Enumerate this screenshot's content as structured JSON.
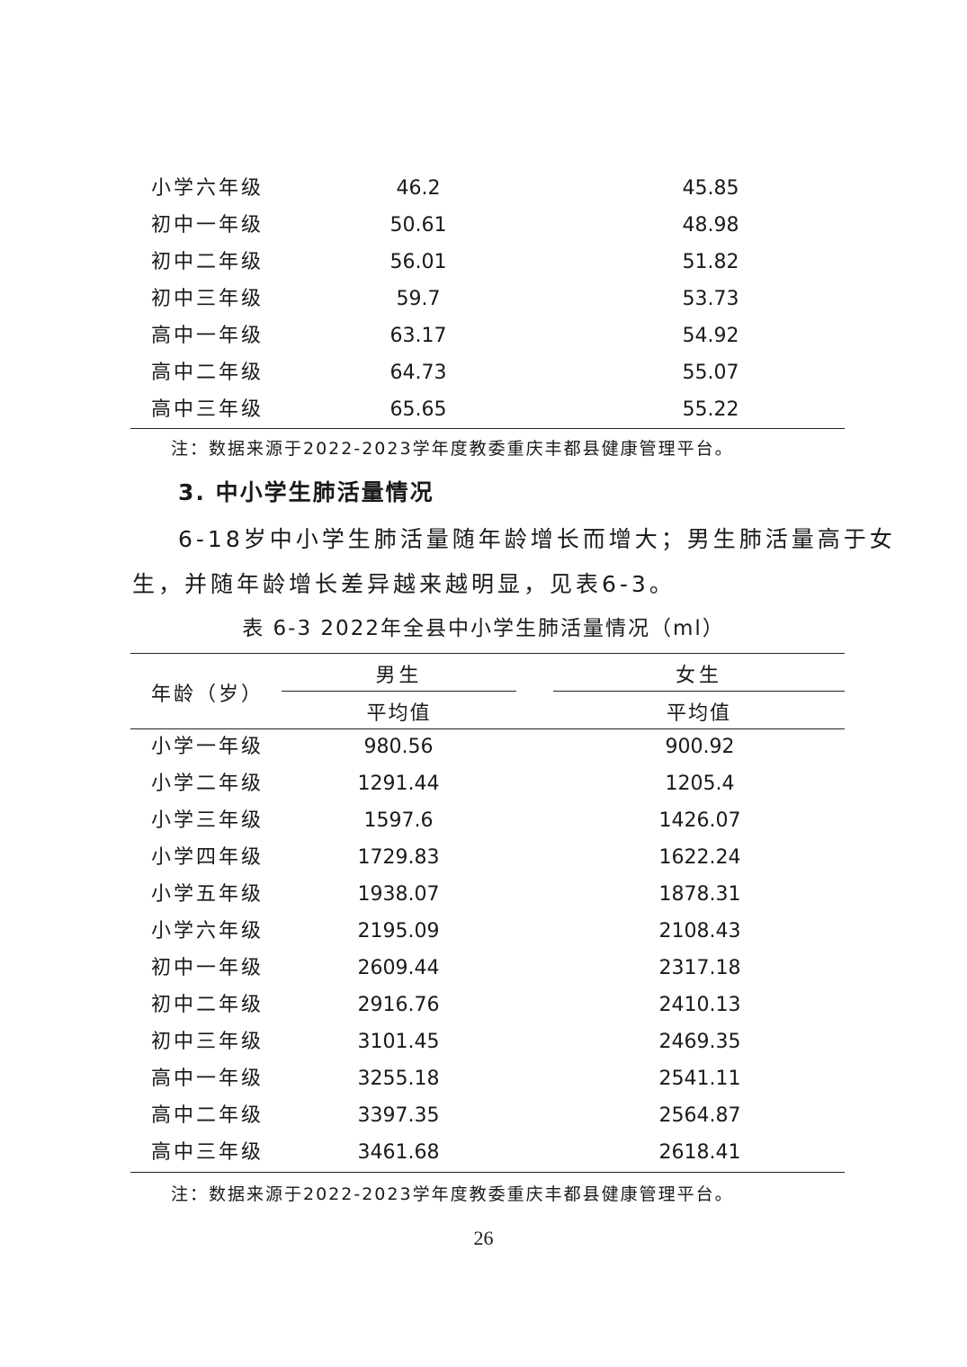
{
  "table_prev": {
    "rows": [
      {
        "grade": "小学六年级",
        "male": "46.2",
        "female": "45.85"
      },
      {
        "grade": "初中一年级",
        "male": "50.61",
        "female": "48.98"
      },
      {
        "grade": "初中二年级",
        "male": "56.01",
        "female": "51.82"
      },
      {
        "grade": "初中三年级",
        "male": "59.7",
        "female": "53.73"
      },
      {
        "grade": "高中一年级",
        "male": "63.17",
        "female": "54.92"
      },
      {
        "grade": "高中二年级",
        "male": "64.73",
        "female": "55.07"
      },
      {
        "grade": "高中三年级",
        "male": "65.65",
        "female": "55.22"
      }
    ],
    "note": "注：数据来源于2022-2023学年度教委重庆丰都县健康管理平台。"
  },
  "section": {
    "heading": "3. 中小学生肺活量情况",
    "para_line1": "6-18岁中小学生肺活量随年龄增长而增大；男生肺活量高于女",
    "para_line2": "生，并随年龄增长差异越来越明显，见表6-3。"
  },
  "table_6_3": {
    "caption": "表 6-3  2022年全县中小学生肺活量情况（ml）",
    "header_age": "年龄（岁）",
    "header_male": "男生",
    "header_female": "女生",
    "header_avg_male": "平均值",
    "header_avg_female": "平均值",
    "rows": [
      {
        "grade": "小学一年级",
        "male": "980.56",
        "female": "900.92"
      },
      {
        "grade": "小学二年级",
        "male": "1291.44",
        "female": "1205.4"
      },
      {
        "grade": "小学三年级",
        "male": "1597.6",
        "female": "1426.07"
      },
      {
        "grade": "小学四年级",
        "male": "1729.83",
        "female": "1622.24"
      },
      {
        "grade": "小学五年级",
        "male": "1938.07",
        "female": "1878.31"
      },
      {
        "grade": "小学六年级",
        "male": "2195.09",
        "female": "2108.43"
      },
      {
        "grade": "初中一年级",
        "male": "2609.44",
        "female": "2317.18"
      },
      {
        "grade": "初中二年级",
        "male": "2916.76",
        "female": "2410.13"
      },
      {
        "grade": "初中三年级",
        "male": "3101.45",
        "female": "2469.35"
      },
      {
        "grade": "高中一年级",
        "male": "3255.18",
        "female": "2541.11"
      },
      {
        "grade": "高中二年级",
        "male": "3397.35",
        "female": "2564.87"
      },
      {
        "grade": "高中三年级",
        "male": "3461.68",
        "female": "2618.41"
      }
    ],
    "note": "注：数据来源于2022-2023学年度教委重庆丰都县健康管理平台。"
  },
  "page_number": "26"
}
